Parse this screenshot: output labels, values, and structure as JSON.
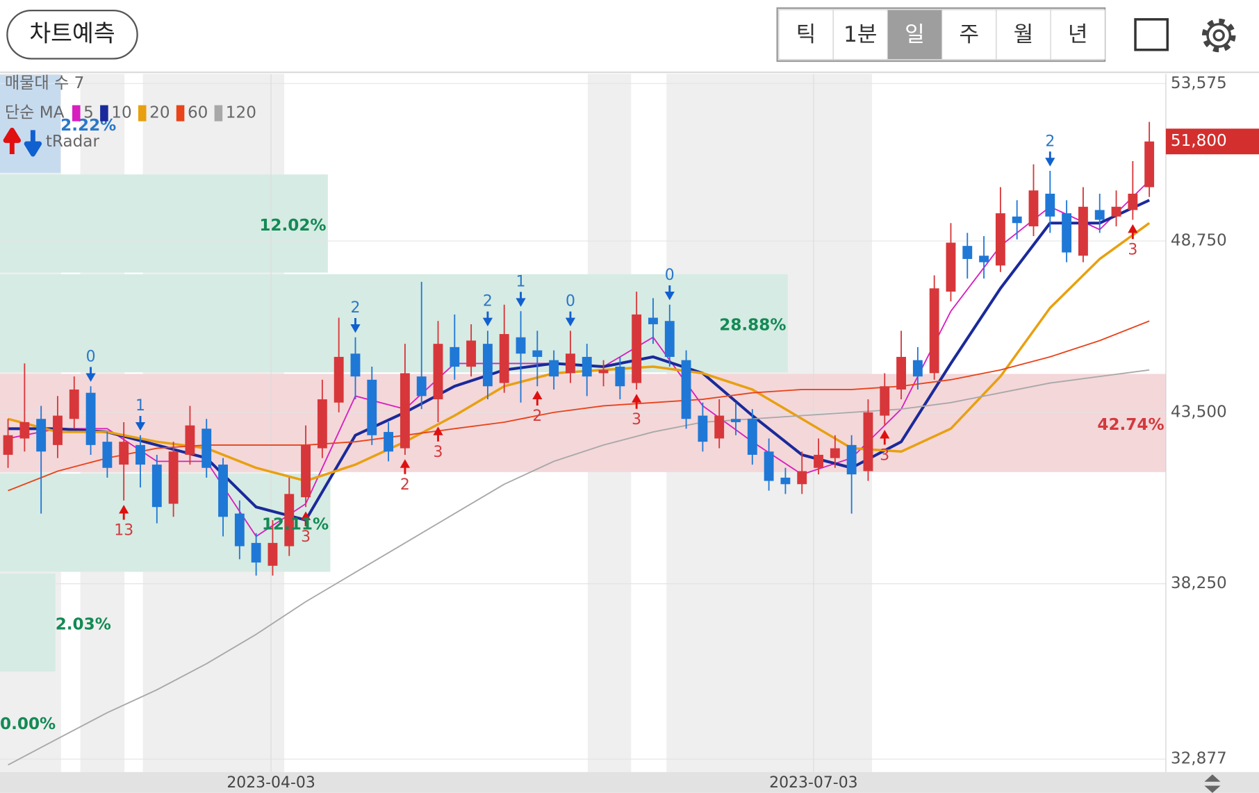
{
  "toolbar": {
    "predict_button": "차트예측",
    "periods": [
      "틱",
      "1분",
      "일",
      "주",
      "월",
      "년"
    ],
    "selected_period": 2
  },
  "chart_data": {
    "type": "candlestick",
    "legend": {
      "volume_profile_title": "매물대 수 7",
      "ma_title": "단순 MA",
      "signal_title": "tRadar"
    },
    "open": [
      42200,
      42700,
      43300,
      42500,
      43300,
      44100,
      42600,
      41900,
      42500,
      41900,
      40700,
      42200,
      43000,
      41900,
      40400,
      39500,
      38800,
      39400,
      40900,
      42400,
      43800,
      45300,
      44500,
      42900,
      42400,
      44600,
      43900,
      45500,
      44900,
      45600,
      44400,
      45800,
      45400,
      45100,
      44700,
      45200,
      44700,
      44900,
      44400,
      46400,
      46300,
      45100,
      43400,
      42700,
      43300,
      43300,
      42300,
      41500,
      41300,
      41800,
      42100,
      42500,
      41700,
      43400,
      44200,
      45100,
      44700,
      47200,
      48600,
      48300,
      48000,
      49500,
      49200,
      50200,
      49600,
      48300,
      49700,
      49500,
      49700,
      50400
    ],
    "high": [
      43300,
      45000,
      43700,
      44000,
      44600,
      44300,
      42900,
      43200,
      42800,
      42200,
      42600,
      43700,
      43300,
      42100,
      40800,
      39800,
      40200,
      41500,
      43100,
      44500,
      46400,
      45800,
      44900,
      43200,
      45600,
      47500,
      46300,
      46500,
      46200,
      46000,
      46800,
      46600,
      46000,
      45400,
      46000,
      45600,
      45100,
      45200,
      47200,
      47000,
      46800,
      45400,
      43800,
      43900,
      43800,
      43600,
      42700,
      41800,
      42300,
      42700,
      42800,
      42800,
      43900,
      44700,
      46000,
      45500,
      47700,
      49300,
      49000,
      48900,
      50400,
      50000,
      51100,
      50900,
      50000,
      50400,
      50200,
      50300,
      51200,
      52400
    ],
    "low": [
      41800,
      42300,
      40400,
      42100,
      43000,
      42200,
      41500,
      40800,
      41200,
      40100,
      40300,
      41900,
      41500,
      39700,
      39000,
      38500,
      38500,
      39100,
      40600,
      42100,
      43500,
      43900,
      42500,
      42000,
      42200,
      43600,
      43200,
      44500,
      44600,
      43900,
      44100,
      43800,
      44300,
      44200,
      44400,
      44000,
      44300,
      43900,
      44200,
      45600,
      44900,
      43000,
      42300,
      42400,
      42800,
      41900,
      41100,
      41000,
      41000,
      41600,
      41800,
      40400,
      41400,
      43100,
      43900,
      44200,
      44500,
      46900,
      47600,
      47600,
      47800,
      48800,
      48900,
      49000,
      48100,
      48100,
      49000,
      49200,
      49400,
      50100
    ],
    "close": [
      42800,
      43200,
      42300,
      43400,
      44200,
      42500,
      41800,
      42600,
      41900,
      40600,
      42300,
      43100,
      41800,
      40300,
      39400,
      38900,
      39500,
      41000,
      42500,
      43900,
      45200,
      44600,
      42800,
      42300,
      44700,
      44000,
      45600,
      44900,
      45700,
      44300,
      45900,
      45300,
      45200,
      44600,
      45300,
      44600,
      44800,
      44300,
      46500,
      46200,
      45200,
      43300,
      42600,
      43400,
      43200,
      42200,
      41400,
      41300,
      41700,
      42200,
      42400,
      41600,
      43500,
      44300,
      45200,
      44600,
      47300,
      48700,
      48200,
      48100,
      49600,
      49300,
      50300,
      49500,
      48400,
      49800,
      49400,
      49800,
      50200,
      51800
    ],
    "up_color": "#d7373a",
    "down_color": "#1f78d6",
    "ma_x": [
      0,
      3,
      6,
      9,
      12,
      15,
      18,
      21,
      24,
      27,
      30,
      33,
      36,
      39,
      42,
      45,
      48,
      51,
      54,
      57,
      60,
      63,
      66,
      69
    ],
    "moving_averages": [
      {
        "name": "5",
        "color": "#d81fc0",
        "values": [
          42700,
          43000,
          43000,
          42000,
          42000,
          39700,
          40700,
          44000,
          43600,
          45000,
          45000,
          45000,
          44900,
          45800,
          43700,
          42600,
          41600,
          42100,
          43600,
          46600,
          48600,
          49800,
          49100,
          50600
        ]
      },
      {
        "name": "10",
        "color": "#1a2a9a",
        "values": [
          43000,
          43000,
          42900,
          42500,
          42100,
          40600,
          40200,
          42800,
          43500,
          44300,
          44800,
          45000,
          44900,
          45200,
          44700,
          43400,
          42200,
          41800,
          42600,
          45000,
          47300,
          49300,
          49300,
          50000
        ]
      },
      {
        "name": "20",
        "color": "#e8a010",
        "values": [
          43300,
          42900,
          42900,
          42600,
          42400,
          41800,
          41400,
          41900,
          42600,
          43400,
          44300,
          44700,
          44800,
          44900,
          44700,
          44200,
          43300,
          42400,
          42300,
          43000,
          44600,
          46700,
          48200,
          49300
        ]
      },
      {
        "name": "60",
        "color": "#e8431a",
        "values": [
          41100,
          41700,
          42100,
          42400,
          42500,
          42500,
          42500,
          42600,
          42800,
          43000,
          43200,
          43500,
          43700,
          43800,
          43900,
          44100,
          44200,
          44200,
          44300,
          44500,
          44800,
          45200,
          45700,
          46300
        ]
      },
      {
        "name": "120",
        "color": "#a8a8a8",
        "values": [
          32700,
          33500,
          34300,
          35000,
          35800,
          36700,
          37700,
          38600,
          39500,
          40400,
          41300,
          42000,
          42500,
          42900,
          43200,
          43300,
          43400,
          43500,
          43600,
          43800,
          44100,
          44400,
          44600,
          44800
        ]
      }
    ],
    "volume_profile": {
      "values": [
        2.22,
        12.02,
        28.88,
        42.74,
        12.11,
        2.03,
        0.0
      ],
      "value_labels": [
        "2.22%",
        "12.02%",
        "28.88%",
        "42.74%",
        "12.11%",
        "2.03%",
        "0.00%"
      ],
      "colors": [
        "#c7dbef",
        "#d6ebe3",
        "#d6ebe3",
        "#f4d7d9",
        "#d6ebe3",
        "#d6ebe3",
        "#d6ebe3"
      ],
      "label_colors": [
        "#2a78c8",
        "#138a55",
        "#138a55",
        "#d23a3e",
        "#138a55",
        "#138a55",
        "#138a55"
      ]
    },
    "signals": [
      {
        "index": 5,
        "direction": "down",
        "label": 0
      },
      {
        "index": 8,
        "direction": "down",
        "label": 1
      },
      {
        "index": 21,
        "direction": "down",
        "label": 2
      },
      {
        "index": 29,
        "direction": "down",
        "label": 2
      },
      {
        "index": 31,
        "direction": "down",
        "label": 1
      },
      {
        "index": 34,
        "direction": "down",
        "label": 0
      },
      {
        "index": 40,
        "direction": "down",
        "label": 0
      },
      {
        "index": 63,
        "direction": "down",
        "label": 2
      },
      {
        "index": 7,
        "direction": "up",
        "label": 13
      },
      {
        "index": 18,
        "direction": "up",
        "label": 3
      },
      {
        "index": 24,
        "direction": "up",
        "label": 2
      },
      {
        "index": 26,
        "direction": "up",
        "label": 3
      },
      {
        "index": 32,
        "direction": "up",
        "label": 2
      },
      {
        "index": 38,
        "direction": "up",
        "label": 3
      },
      {
        "index": 53,
        "direction": "up",
        "label": 3
      },
      {
        "index": 68,
        "direction": "up",
        "label": 3
      }
    ],
    "last_price": {
      "value": 51800,
      "label": "51,800"
    },
    "ylim": [
      32480,
      53870
    ],
    "yticks": [
      {
        "value": 53575,
        "label": "53,575"
      },
      {
        "value": 48750,
        "label": "48,750"
      },
      {
        "value": 43500,
        "label": "43,500"
      },
      {
        "value": 38250,
        "label": "38,250"
      },
      {
        "value": 32877,
        "label": "32,877"
      }
    ],
    "xticks": [
      {
        "value": 15.9,
        "label": "2023-04-03"
      },
      {
        "value": 48.7,
        "label": "2023-07-03"
      }
    ],
    "grid": true
  }
}
